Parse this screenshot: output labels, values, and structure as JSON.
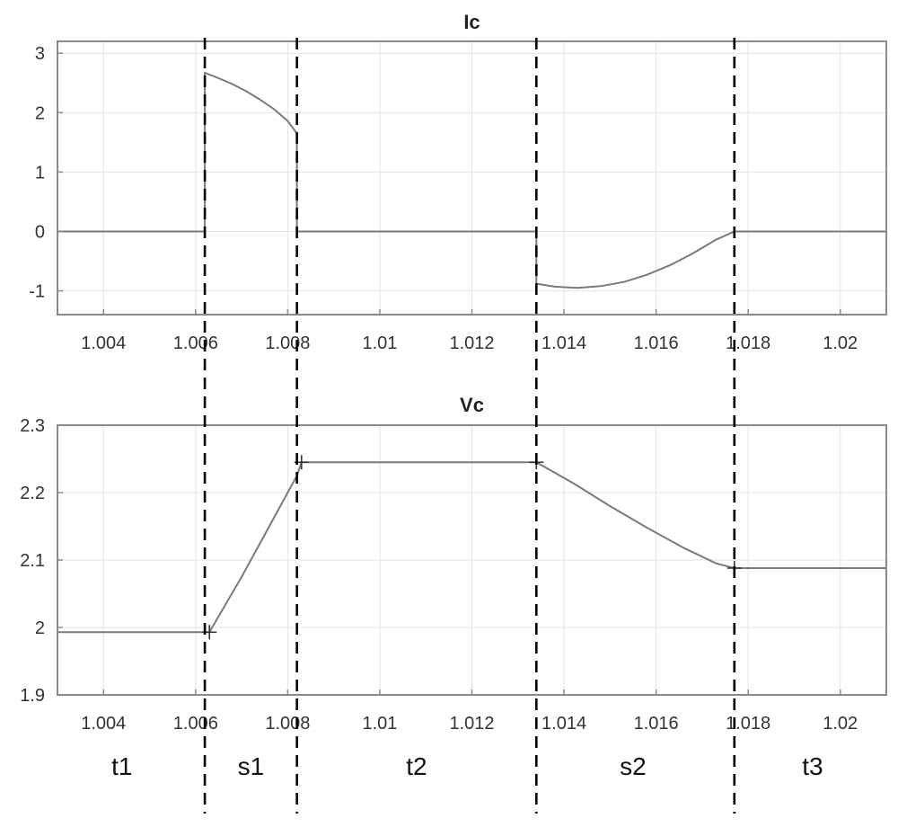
{
  "chart_data": [
    {
      "type": "line",
      "title": "Ic",
      "xlim": [
        1.003,
        1.021
      ],
      "ylim": [
        -1.4,
        3.2
      ],
      "xticks": [
        1.004,
        1.006,
        1.008,
        1.01,
        1.012,
        1.014,
        1.016,
        1.018,
        1.02
      ],
      "xtick_labels": [
        "1.004",
        "1.006",
        "1.008",
        "1.01",
        "1.012",
        "1.014",
        "1.016",
        "1.018",
        "1.02"
      ],
      "yticks": [
        -1,
        0,
        1,
        2,
        3
      ],
      "ytick_labels": [
        "-1",
        "0",
        "1",
        "2",
        "3"
      ],
      "grid": true,
      "series": [
        {
          "color": "#7a7a7a",
          "x": [
            1.003,
            1.0062,
            1.0062,
            1.0065,
            1.0068,
            1.0071,
            1.0074,
            1.0077,
            1.008,
            1.0082,
            1.0082,
            1.0134,
            1.0134,
            1.0138,
            1.0143,
            1.0148,
            1.0153,
            1.0158,
            1.0163,
            1.0168,
            1.0173,
            1.0177,
            1.021
          ],
          "y": [
            0,
            0,
            2.67,
            2.58,
            2.48,
            2.36,
            2.22,
            2.06,
            1.86,
            1.65,
            0,
            0,
            -0.88,
            -0.93,
            -0.95,
            -0.92,
            -0.85,
            -0.73,
            -0.57,
            -0.37,
            -0.14,
            0,
            0
          ]
        }
      ]
    },
    {
      "type": "line",
      "title": "Vc",
      "xlim": [
        1.003,
        1.021
      ],
      "ylim": [
        1.9,
        2.3
      ],
      "xticks": [
        1.004,
        1.006,
        1.008,
        1.01,
        1.012,
        1.014,
        1.016,
        1.018,
        1.02
      ],
      "xtick_labels": [
        "1.004",
        "1.006",
        "1.008",
        "1.01",
        "1.012",
        "1.014",
        "1.016",
        "1.018",
        "1.02"
      ],
      "yticks": [
        1.9,
        2.0,
        2.1,
        2.2,
        2.3
      ],
      "ytick_labels": [
        "1.9",
        "2",
        "2.1",
        "2.2",
        "2.3"
      ],
      "grid": true,
      "series": [
        {
          "color": "#7a7a7a",
          "x": [
            1.003,
            1.0063,
            1.007,
            1.0076,
            1.0082,
            1.0083,
            1.0134,
            1.0142,
            1.015,
            1.0158,
            1.0166,
            1.0173,
            1.0177,
            1.021
          ],
          "y": [
            1.993,
            1.993,
            2.075,
            2.15,
            2.225,
            2.245,
            2.245,
            2.214,
            2.18,
            2.148,
            2.118,
            2.095,
            2.088,
            2.088
          ]
        }
      ],
      "markers": [
        {
          "x": 1.0063,
          "y": 1.993
        },
        {
          "x": 1.0083,
          "y": 2.245
        },
        {
          "x": 1.0134,
          "y": 2.245
        },
        {
          "x": 1.0177,
          "y": 2.088
        }
      ]
    }
  ],
  "dividers": [
    1.0062,
    1.0082,
    1.0134,
    1.0177
  ],
  "regions": [
    {
      "label": "t1",
      "x": 1.0044
    },
    {
      "label": "s1",
      "x": 1.0072
    },
    {
      "label": "t2",
      "x": 1.0108
    },
    {
      "label": "s2",
      "x": 1.0155
    },
    {
      "label": "t3",
      "x": 1.0194
    }
  ]
}
